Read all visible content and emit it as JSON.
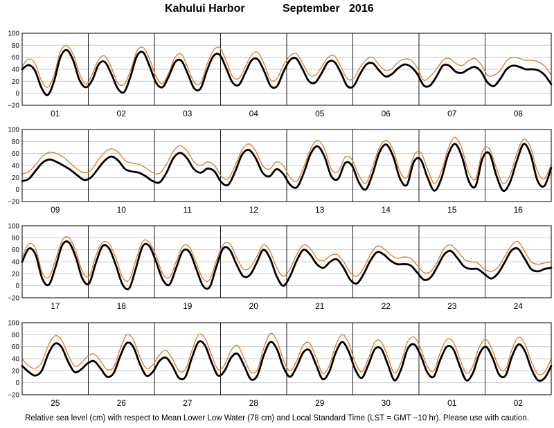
{
  "header": {
    "station": "Kahului Harbor",
    "month": "September   2016"
  },
  "footer": {
    "note": "Relative sea level (cm) with respect to Mean Lower Low Water (78 cm) and Local Standard Time (LST = GMT −10 hr). Please use with caution."
  },
  "colors": {
    "observed": "#000000",
    "predicted": "#e07a1f",
    "frame": "#000000"
  },
  "chart_data": [
    {
      "type": "line",
      "ylim": [
        -20,
        100
      ],
      "yticks": [
        "100",
        "80",
        "60",
        "40",
        "20",
        "0",
        "−20"
      ],
      "day_labels": [
        "01",
        "02",
        "03",
        "04",
        "05",
        "06",
        "07",
        "08"
      ],
      "series": [
        {
          "values": [
            40,
            47,
            38,
            10,
            -3,
            20,
            60,
            72,
            55,
            22,
            10,
            22,
            48,
            52,
            32,
            8,
            2,
            28,
            62,
            68,
            45,
            18,
            10,
            28,
            52,
            54,
            32,
            8,
            8,
            38,
            62,
            64,
            42,
            18,
            14,
            34,
            55,
            56,
            36,
            12,
            12,
            36,
            55,
            58,
            40,
            20,
            18,
            34,
            52,
            52,
            34,
            12,
            12,
            32,
            48,
            50,
            38,
            28,
            32,
            42,
            48,
            44,
            32,
            13,
            13,
            28,
            46,
            46,
            36,
            34,
            40,
            44,
            36,
            18,
            12,
            24,
            40,
            46,
            44,
            40,
            40,
            38,
            30,
            15
          ]
        },
        {
          "values": [
            45,
            57,
            50,
            22,
            10,
            30,
            70,
            79,
            65,
            33,
            15,
            32,
            56,
            62,
            43,
            17,
            15,
            38,
            70,
            76,
            57,
            28,
            16,
            34,
            60,
            65,
            42,
            18,
            17,
            48,
            71,
            76,
            54,
            28,
            25,
            44,
            64,
            68,
            48,
            22,
            25,
            47,
            62,
            66,
            50,
            31,
            30,
            44,
            60,
            62,
            44,
            24,
            25,
            43,
            56,
            60,
            47,
            38,
            41,
            52,
            57,
            55,
            42,
            22,
            28,
            40,
            55,
            58,
            50,
            46,
            54,
            58,
            48,
            30,
            30,
            38,
            54,
            60,
            58,
            55,
            55,
            52,
            45,
            30
          ]
        }
      ]
    },
    {
      "type": "line",
      "ylim": [
        -20,
        100
      ],
      "yticks": [
        "100",
        "80",
        "60",
        "40",
        "20",
        "0",
        "−20"
      ],
      "day_labels": [
        "09",
        "10",
        "11",
        "12",
        "13",
        "14",
        "15",
        "16"
      ],
      "series": [
        {
          "values": [
            14,
            18,
            32,
            45,
            50,
            46,
            40,
            33,
            24,
            16,
            20,
            34,
            48,
            55,
            48,
            34,
            30,
            28,
            22,
            14,
            12,
            28,
            52,
            61,
            52,
            34,
            28,
            35,
            30,
            12,
            8,
            30,
            58,
            66,
            52,
            28,
            22,
            34,
            26,
            8,
            4,
            28,
            60,
            72,
            55,
            22,
            18,
            44,
            40,
            12,
            0,
            26,
            62,
            75,
            55,
            18,
            8,
            46,
            50,
            20,
            -2,
            18,
            58,
            76,
            55,
            14,
            6,
            52,
            60,
            24,
            -2,
            12,
            48,
            76,
            58,
            15,
            6,
            36
          ]
        },
        {
          "values": [
            26,
            30,
            42,
            56,
            62,
            60,
            54,
            44,
            34,
            28,
            32,
            48,
            62,
            68,
            62,
            48,
            44,
            42,
            36,
            28,
            27,
            42,
            64,
            73,
            64,
            46,
            40,
            46,
            40,
            22,
            18,
            40,
            66,
            76,
            64,
            40,
            34,
            46,
            40,
            20,
            14,
            38,
            68,
            82,
            68,
            34,
            30,
            54,
            50,
            24,
            10,
            38,
            70,
            82,
            66,
            30,
            20,
            56,
            62,
            34,
            10,
            30,
            68,
            87,
            68,
            28,
            18,
            64,
            68,
            36,
            10,
            24,
            60,
            84,
            70,
            30,
            18,
            42
          ]
        }
      ]
    },
    {
      "type": "line",
      "ylim": [
        -20,
        100
      ],
      "yticks": [
        "100",
        "80",
        "60",
        "40",
        "20",
        "0",
        "−20"
      ],
      "day_labels": [
        "17",
        "18",
        "19",
        "20",
        "21",
        "22",
        "23",
        "24"
      ],
      "series": [
        {
          "values": [
            40,
            62,
            52,
            12,
            2,
            32,
            68,
            72,
            48,
            12,
            4,
            38,
            66,
            62,
            34,
            2,
            -4,
            30,
            66,
            66,
            40,
            10,
            2,
            30,
            58,
            56,
            28,
            0,
            -2,
            32,
            62,
            60,
            36,
            16,
            18,
            38,
            60,
            46,
            16,
            0,
            16,
            42,
            60,
            52,
            36,
            30,
            40,
            44,
            30,
            10,
            4,
            20,
            42,
            56,
            52,
            42,
            36,
            36,
            34,
            22,
            10,
            14,
            32,
            52,
            58,
            46,
            32,
            28,
            28,
            20,
            12,
            20,
            38,
            58,
            62,
            46,
            28,
            24,
            28,
            30
          ]
        },
        {
          "values": [
            48,
            70,
            62,
            22,
            14,
            44,
            76,
            80,
            58,
            24,
            16,
            50,
            72,
            70,
            46,
            14,
            10,
            44,
            74,
            72,
            50,
            20,
            14,
            40,
            66,
            64,
            38,
            12,
            10,
            42,
            68,
            70,
            48,
            28,
            30,
            48,
            68,
            58,
            30,
            16,
            28,
            52,
            68,
            62,
            46,
            42,
            50,
            52,
            40,
            22,
            16,
            30,
            52,
            66,
            62,
            52,
            46,
            48,
            46,
            34,
            22,
            24,
            40,
            62,
            68,
            58,
            44,
            40,
            38,
            28,
            24,
            30,
            48,
            66,
            74,
            58,
            40,
            36,
            38,
            40
          ]
        }
      ]
    },
    {
      "type": "line",
      "ylim": [
        -20,
        100
      ],
      "yticks": [
        "100",
        "80",
        "60",
        "40",
        "20",
        "0",
        "−20"
      ],
      "day_labels": [
        "25",
        "26",
        "27",
        "28",
        "29",
        "30",
        "01",
        "02"
      ],
      "series": [
        {
          "values": [
            28,
            18,
            12,
            20,
            48,
            65,
            60,
            36,
            18,
            22,
            32,
            36,
            24,
            10,
            16,
            44,
            66,
            60,
            32,
            12,
            18,
            36,
            42,
            28,
            8,
            10,
            42,
            68,
            62,
            34,
            12,
            20,
            42,
            48,
            28,
            6,
            12,
            46,
            68,
            56,
            26,
            10,
            26,
            50,
            54,
            30,
            6,
            18,
            50,
            68,
            52,
            22,
            8,
            30,
            56,
            56,
            30,
            4,
            22,
            56,
            64,
            46,
            18,
            10,
            38,
            60,
            56,
            28,
            4,
            16,
            48,
            60,
            42,
            14,
            12,
            44,
            64,
            52,
            22,
            4,
            8,
            28
          ]
        },
        {
          "values": [
            40,
            28,
            24,
            34,
            62,
            78,
            72,
            48,
            28,
            32,
            44,
            48,
            36,
            22,
            26,
            56,
            80,
            72,
            44,
            24,
            30,
            46,
            54,
            40,
            20,
            22,
            54,
            80,
            74,
            46,
            22,
            30,
            54,
            62,
            40,
            18,
            22,
            58,
            82,
            70,
            38,
            20,
            36,
            62,
            66,
            42,
            16,
            28,
            62,
            80,
            66,
            34,
            18,
            40,
            68,
            68,
            42,
            16,
            34,
            68,
            76,
            58,
            28,
            20,
            50,
            72,
            68,
            40,
            16,
            28,
            60,
            72,
            54,
            26,
            22,
            56,
            76,
            64,
            34,
            14,
            18,
            40
          ]
        }
      ]
    }
  ]
}
